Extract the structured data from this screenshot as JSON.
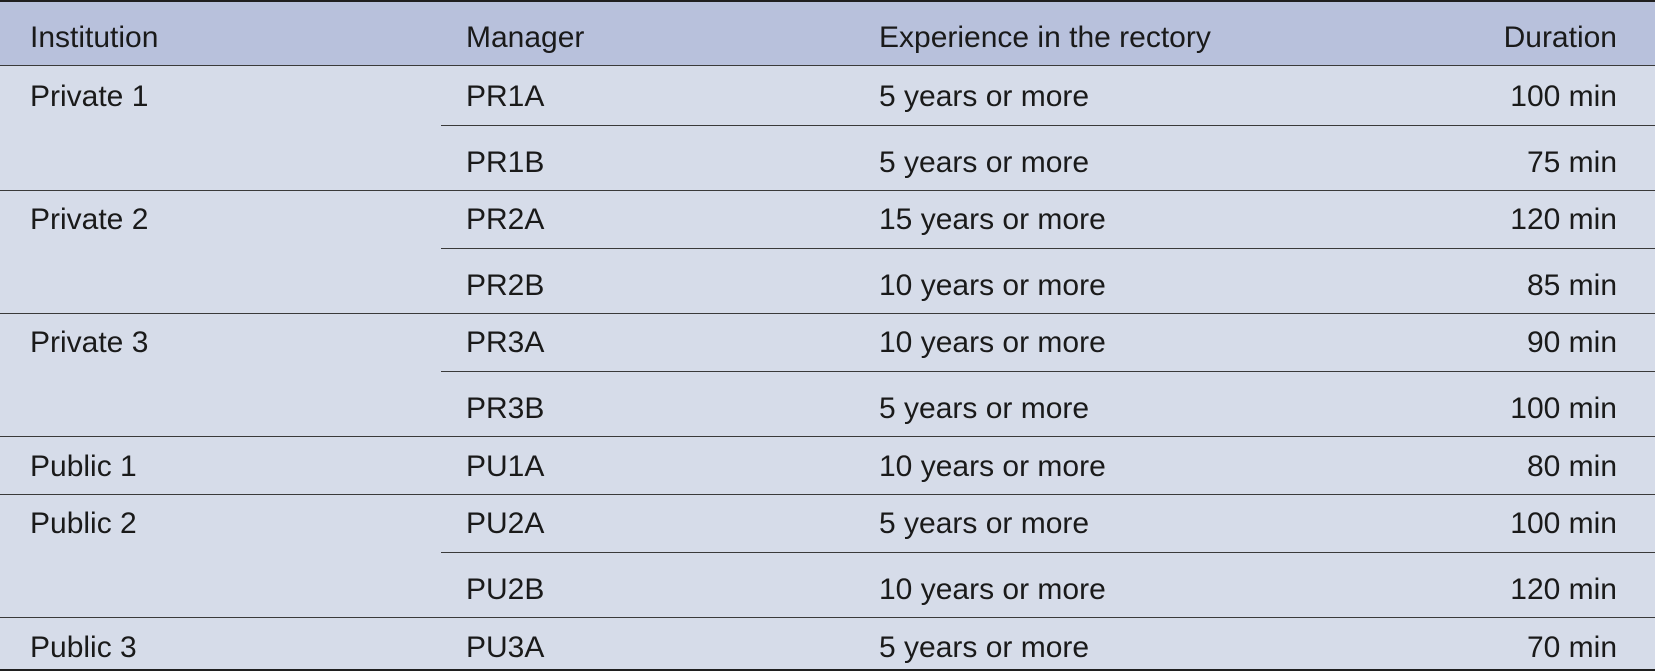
{
  "headers": {
    "institution": "Institution",
    "manager": "Manager",
    "experience": "Experience in the rectory",
    "duration": "Duration"
  },
  "rows": [
    {
      "institution": "Private 1",
      "manager": "PR1A",
      "experience": "5 years or more",
      "duration": "100 min"
    },
    {
      "institution": "",
      "manager": "PR1B",
      "experience": "5 years or more",
      "duration": "75 min"
    },
    {
      "institution": "Private 2",
      "manager": "PR2A",
      "experience": "15 years or more",
      "duration": "120 min"
    },
    {
      "institution": "",
      "manager": "PR2B",
      "experience": "10 years or more",
      "duration": "85 min"
    },
    {
      "institution": "Private 3",
      "manager": "PR3A",
      "experience": "10 years or more",
      "duration": "90 min"
    },
    {
      "institution": "",
      "manager": "PR3B",
      "experience": "5 years or more",
      "duration": "100 min"
    },
    {
      "institution": "Public 1",
      "manager": "PU1A",
      "experience": "10 years or more",
      "duration": "80 min"
    },
    {
      "institution": "Public 2",
      "manager": "PU2A",
      "experience": "5 years or more",
      "duration": "100 min"
    },
    {
      "institution": "",
      "manager": "PU2B",
      "experience": "10 years or more",
      "duration": "120 min"
    },
    {
      "institution": "Public 3",
      "manager": "PU3A",
      "experience": "5 years or more",
      "duration": "70 min"
    }
  ]
}
